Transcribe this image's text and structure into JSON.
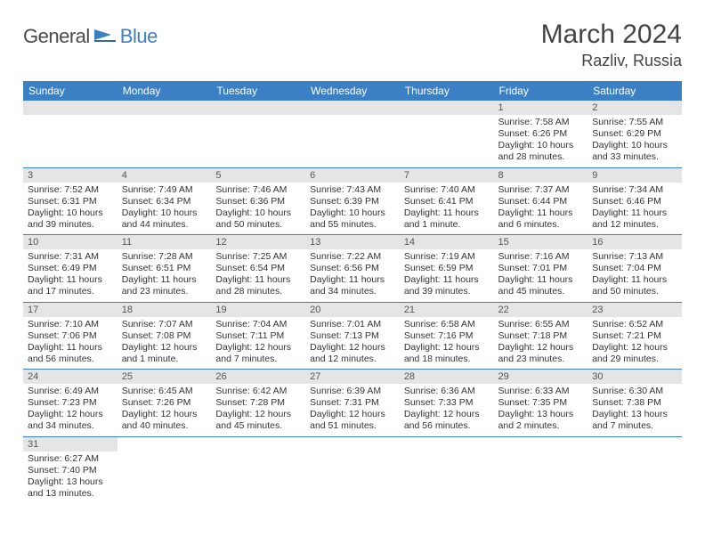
{
  "brand": {
    "part1": "General",
    "part2": "Blue"
  },
  "title": {
    "month": "March 2024",
    "location": "Razliv, Russia"
  },
  "colors": {
    "header": "#3b7fc4",
    "daynum_bg": "#e5e5e5",
    "text": "#333333",
    "brand_blue": "#3b7fc4",
    "brand_gray": "#4a4a4a"
  },
  "daynames": [
    "Sunday",
    "Monday",
    "Tuesday",
    "Wednesday",
    "Thursday",
    "Friday",
    "Saturday"
  ],
  "weeks": [
    [
      null,
      null,
      null,
      null,
      null,
      {
        "n": "1",
        "sr": "Sunrise: 7:58 AM",
        "ss": "Sunset: 6:26 PM",
        "d1": "Daylight: 10 hours",
        "d2": "and 28 minutes."
      },
      {
        "n": "2",
        "sr": "Sunrise: 7:55 AM",
        "ss": "Sunset: 6:29 PM",
        "d1": "Daylight: 10 hours",
        "d2": "and 33 minutes."
      }
    ],
    [
      {
        "n": "3",
        "sr": "Sunrise: 7:52 AM",
        "ss": "Sunset: 6:31 PM",
        "d1": "Daylight: 10 hours",
        "d2": "and 39 minutes."
      },
      {
        "n": "4",
        "sr": "Sunrise: 7:49 AM",
        "ss": "Sunset: 6:34 PM",
        "d1": "Daylight: 10 hours",
        "d2": "and 44 minutes."
      },
      {
        "n": "5",
        "sr": "Sunrise: 7:46 AM",
        "ss": "Sunset: 6:36 PM",
        "d1": "Daylight: 10 hours",
        "d2": "and 50 minutes."
      },
      {
        "n": "6",
        "sr": "Sunrise: 7:43 AM",
        "ss": "Sunset: 6:39 PM",
        "d1": "Daylight: 10 hours",
        "d2": "and 55 minutes."
      },
      {
        "n": "7",
        "sr": "Sunrise: 7:40 AM",
        "ss": "Sunset: 6:41 PM",
        "d1": "Daylight: 11 hours",
        "d2": "and 1 minute."
      },
      {
        "n": "8",
        "sr": "Sunrise: 7:37 AM",
        "ss": "Sunset: 6:44 PM",
        "d1": "Daylight: 11 hours",
        "d2": "and 6 minutes."
      },
      {
        "n": "9",
        "sr": "Sunrise: 7:34 AM",
        "ss": "Sunset: 6:46 PM",
        "d1": "Daylight: 11 hours",
        "d2": "and 12 minutes."
      }
    ],
    [
      {
        "n": "10",
        "sr": "Sunrise: 7:31 AM",
        "ss": "Sunset: 6:49 PM",
        "d1": "Daylight: 11 hours",
        "d2": "and 17 minutes."
      },
      {
        "n": "11",
        "sr": "Sunrise: 7:28 AM",
        "ss": "Sunset: 6:51 PM",
        "d1": "Daylight: 11 hours",
        "d2": "and 23 minutes."
      },
      {
        "n": "12",
        "sr": "Sunrise: 7:25 AM",
        "ss": "Sunset: 6:54 PM",
        "d1": "Daylight: 11 hours",
        "d2": "and 28 minutes."
      },
      {
        "n": "13",
        "sr": "Sunrise: 7:22 AM",
        "ss": "Sunset: 6:56 PM",
        "d1": "Daylight: 11 hours",
        "d2": "and 34 minutes."
      },
      {
        "n": "14",
        "sr": "Sunrise: 7:19 AM",
        "ss": "Sunset: 6:59 PM",
        "d1": "Daylight: 11 hours",
        "d2": "and 39 minutes."
      },
      {
        "n": "15",
        "sr": "Sunrise: 7:16 AM",
        "ss": "Sunset: 7:01 PM",
        "d1": "Daylight: 11 hours",
        "d2": "and 45 minutes."
      },
      {
        "n": "16",
        "sr": "Sunrise: 7:13 AM",
        "ss": "Sunset: 7:04 PM",
        "d1": "Daylight: 11 hours",
        "d2": "and 50 minutes."
      }
    ],
    [
      {
        "n": "17",
        "sr": "Sunrise: 7:10 AM",
        "ss": "Sunset: 7:06 PM",
        "d1": "Daylight: 11 hours",
        "d2": "and 56 minutes."
      },
      {
        "n": "18",
        "sr": "Sunrise: 7:07 AM",
        "ss": "Sunset: 7:08 PM",
        "d1": "Daylight: 12 hours",
        "d2": "and 1 minute."
      },
      {
        "n": "19",
        "sr": "Sunrise: 7:04 AM",
        "ss": "Sunset: 7:11 PM",
        "d1": "Daylight: 12 hours",
        "d2": "and 7 minutes."
      },
      {
        "n": "20",
        "sr": "Sunrise: 7:01 AM",
        "ss": "Sunset: 7:13 PM",
        "d1": "Daylight: 12 hours",
        "d2": "and 12 minutes."
      },
      {
        "n": "21",
        "sr": "Sunrise: 6:58 AM",
        "ss": "Sunset: 7:16 PM",
        "d1": "Daylight: 12 hours",
        "d2": "and 18 minutes."
      },
      {
        "n": "22",
        "sr": "Sunrise: 6:55 AM",
        "ss": "Sunset: 7:18 PM",
        "d1": "Daylight: 12 hours",
        "d2": "and 23 minutes."
      },
      {
        "n": "23",
        "sr": "Sunrise: 6:52 AM",
        "ss": "Sunset: 7:21 PM",
        "d1": "Daylight: 12 hours",
        "d2": "and 29 minutes."
      }
    ],
    [
      {
        "n": "24",
        "sr": "Sunrise: 6:49 AM",
        "ss": "Sunset: 7:23 PM",
        "d1": "Daylight: 12 hours",
        "d2": "and 34 minutes."
      },
      {
        "n": "25",
        "sr": "Sunrise: 6:45 AM",
        "ss": "Sunset: 7:26 PM",
        "d1": "Daylight: 12 hours",
        "d2": "and 40 minutes."
      },
      {
        "n": "26",
        "sr": "Sunrise: 6:42 AM",
        "ss": "Sunset: 7:28 PM",
        "d1": "Daylight: 12 hours",
        "d2": "and 45 minutes."
      },
      {
        "n": "27",
        "sr": "Sunrise: 6:39 AM",
        "ss": "Sunset: 7:31 PM",
        "d1": "Daylight: 12 hours",
        "d2": "and 51 minutes."
      },
      {
        "n": "28",
        "sr": "Sunrise: 6:36 AM",
        "ss": "Sunset: 7:33 PM",
        "d1": "Daylight: 12 hours",
        "d2": "and 56 minutes."
      },
      {
        "n": "29",
        "sr": "Sunrise: 6:33 AM",
        "ss": "Sunset: 7:35 PM",
        "d1": "Daylight: 13 hours",
        "d2": "and 2 minutes."
      },
      {
        "n": "30",
        "sr": "Sunrise: 6:30 AM",
        "ss": "Sunset: 7:38 PM",
        "d1": "Daylight: 13 hours",
        "d2": "and 7 minutes."
      }
    ],
    [
      {
        "n": "31",
        "sr": "Sunrise: 6:27 AM",
        "ss": "Sunset: 7:40 PM",
        "d1": "Daylight: 13 hours",
        "d2": "and 13 minutes."
      },
      null,
      null,
      null,
      null,
      null,
      null
    ]
  ]
}
